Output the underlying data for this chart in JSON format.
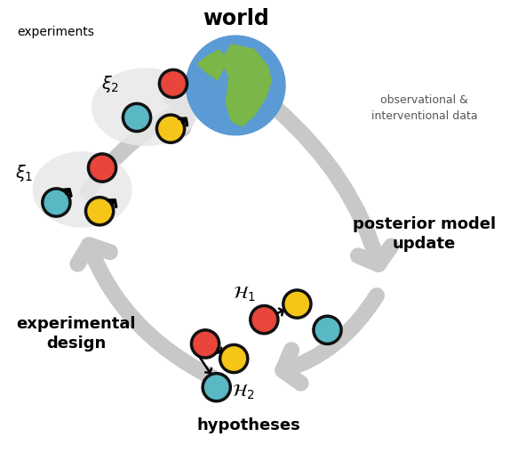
{
  "bg_color": "#ffffff",
  "arrow_color": "#c8c8c8",
  "node_colors": {
    "red": "#e8453c",
    "cyan": "#5ab8c4",
    "yellow": "#f5c518"
  },
  "node_edge_color": "#111111",
  "node_edge_width": 2.5,
  "labels": {
    "world": "world",
    "experiments": "experiments",
    "observational": "observational &\ninterventional data",
    "experimental_design": "experimental\ndesign",
    "posterior": "posterior model\nupdate",
    "hypotheses": "hypotheses"
  },
  "globe_ocean": "#5b9bd5",
  "globe_land": "#7ab648",
  "cloud_color": "#e8e8e8",
  "bold_labels": [
    "world",
    "experimental_design",
    "posterior",
    "hypotheses"
  ],
  "light_labels": [
    "experiments",
    "observational"
  ]
}
